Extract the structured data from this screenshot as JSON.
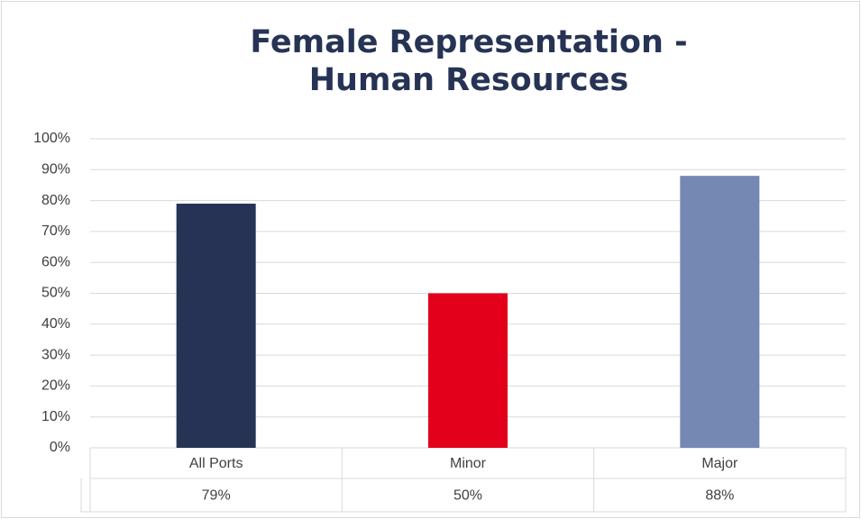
{
  "chart_data": {
    "type": "bar",
    "title": "Female Representation - Human Resources",
    "categories": [
      "All Ports",
      "Minor",
      "Major"
    ],
    "values": [
      79,
      50,
      88
    ],
    "value_labels": [
      "79%",
      "50%",
      "88%"
    ],
    "colors": [
      "#263354",
      "#e2001a",
      "#7587b3"
    ],
    "ylim": [
      0,
      100
    ],
    "yticks": [
      {
        "value": 0,
        "label": "0%"
      },
      {
        "value": 10,
        "label": "10%"
      },
      {
        "value": 20,
        "label": "20%"
      },
      {
        "value": 30,
        "label": "30%"
      },
      {
        "value": 40,
        "label": "40%"
      },
      {
        "value": 50,
        "label": "50%"
      },
      {
        "value": 60,
        "label": "60%"
      },
      {
        "value": 70,
        "label": "70%"
      },
      {
        "value": 80,
        "label": "80%"
      },
      {
        "value": 90,
        "label": "90%"
      },
      {
        "value": 100,
        "label": "100%"
      }
    ],
    "grid": true
  }
}
